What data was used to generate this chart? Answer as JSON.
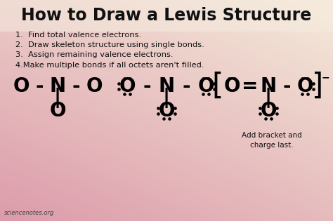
{
  "title": "How to Draw a Lewis Structure",
  "steps": [
    "1.  Find total valence electrons.",
    "2.  Draw skeleton structure using single bonds.",
    "3.  Assign remaining valence electrons.",
    "4.Make multiple bonds if all octets aren't filled."
  ],
  "title_color": "#111111",
  "text_color": "#111111",
  "watermark": "sciencenotes.org",
  "caption": "Add bracket and\ncharge last."
}
